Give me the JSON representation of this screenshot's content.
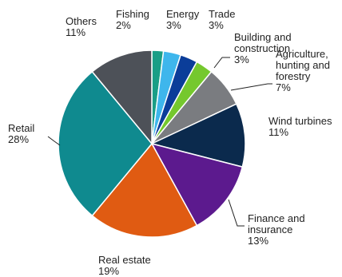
{
  "chart_data": {
    "type": "pie",
    "slices": [
      {
        "label": "Fishing",
        "value": 2,
        "value_label": "2%",
        "color": "#1a9e86"
      },
      {
        "label": "Energy",
        "value": 3,
        "value_label": "3%",
        "color": "#3eb6ec"
      },
      {
        "label": "Trade",
        "value": 3,
        "value_label": "3%",
        "color": "#0b3d99"
      },
      {
        "label": "Building and construction",
        "value": 3,
        "value_label": "3%",
        "color": "#75c82e"
      },
      {
        "label": "Agriculture, hunting and forestry",
        "value": 7,
        "value_label": "7%",
        "color": "#7a7c80"
      },
      {
        "label": "Wind turbines",
        "value": 11,
        "value_label": "11%",
        "color": "#0b2a4d"
      },
      {
        "label": "Finance and insurance",
        "value": 13,
        "value_label": "13%",
        "color": "#5c1a8e"
      },
      {
        "label": "Real estate",
        "value": 19,
        "value_label": "19%",
        "color": "#e05b12"
      },
      {
        "label": "Retail",
        "value": 28,
        "value_label": "28%",
        "color": "#0f8a8f"
      },
      {
        "label": "Others",
        "value": 11,
        "value_label": "11%",
        "color": "#4d5158"
      }
    ],
    "labels": [
      {
        "lines": [
          "Fishing",
          "2%"
        ]
      },
      {
        "lines": [
          "Energy",
          "3%"
        ]
      },
      {
        "lines": [
          "Trade",
          "3%"
        ]
      },
      {
        "lines": [
          "Building and",
          "construction",
          "3%"
        ]
      },
      {
        "lines": [
          "Agriculture,",
          "hunting and",
          "forestry",
          "7%"
        ]
      },
      {
        "lines": [
          "Wind turbines",
          "11%"
        ]
      },
      {
        "lines": [
          "Finance and",
          "insurance",
          "13%"
        ]
      },
      {
        "lines": [
          "Real estate",
          "19%"
        ]
      },
      {
        "lines": [
          "Retail",
          "28%"
        ]
      },
      {
        "lines": [
          "Others",
          "11%"
        ]
      }
    ],
    "start": "12 o'clock",
    "direction": "clockwise"
  }
}
